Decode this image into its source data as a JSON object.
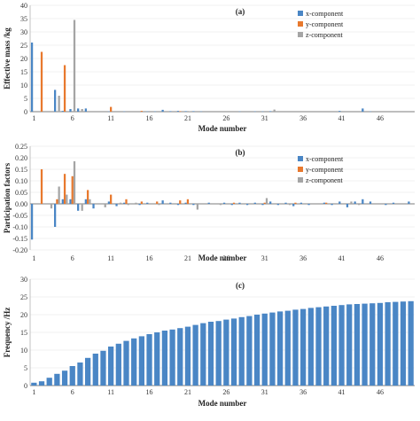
{
  "chart_data": [
    {
      "type": "bar",
      "panel_label": "(a)",
      "xlabel": "Mode number",
      "ylabel": "Effective mass /kg",
      "ylim": [
        0,
        40
      ],
      "yticks": [
        "0",
        "5",
        "10",
        "15",
        "20",
        "25",
        "30",
        "35",
        "40"
      ],
      "x": [
        1,
        2,
        3,
        4,
        5,
        6,
        7,
        8,
        9,
        10,
        11,
        12,
        13,
        14,
        15,
        16,
        17,
        18,
        19,
        20,
        21,
        22,
        23,
        24,
        25,
        26,
        27,
        28,
        29,
        30,
        31,
        32,
        33,
        34,
        35,
        36,
        37,
        38,
        39,
        40,
        41,
        42,
        43,
        44,
        45,
        46,
        47,
        48,
        49,
        50
      ],
      "xticks": [
        "1",
        "6",
        "11",
        "16",
        "21",
        "26",
        "31",
        "36",
        "41",
        "46"
      ],
      "legend_position": "top-right",
      "series": [
        {
          "name": "x-component",
          "color": "#4a86c5",
          "values": [
            26,
            0,
            0,
            8.2,
            0.3,
            1,
            1.2,
            1.2,
            0,
            0,
            0.1,
            0,
            0.1,
            0,
            0,
            0.1,
            0.1,
            0.7,
            0.2,
            0.3,
            0.2,
            0.2,
            0.1,
            0,
            0,
            0,
            0,
            0.1,
            0,
            0.1,
            0.1,
            0.2,
            0,
            0,
            0,
            0,
            0,
            0,
            0,
            0,
            0.3,
            0,
            0,
            1.2,
            0.1,
            0,
            0,
            0,
            0,
            0
          ]
        },
        {
          "name": "y-component",
          "color": "#e8792e",
          "values": [
            0,
            22.5,
            0,
            0,
            17.5,
            0,
            0,
            0,
            0,
            0,
            1.8,
            0,
            0,
            0,
            0.3,
            0,
            0,
            0,
            0,
            0.2,
            0,
            0,
            0,
            0,
            0,
            0,
            0,
            0,
            0,
            0,
            0,
            0,
            0,
            0,
            0,
            0,
            0,
            0,
            0,
            0,
            0,
            0,
            0,
            0,
            0,
            0,
            0,
            0,
            0,
            0
          ]
        },
        {
          "name": "z-component",
          "color": "#a5a5a5",
          "values": [
            0,
            0,
            0,
            6,
            0,
            34.5,
            1,
            0,
            0,
            0,
            0,
            0,
            0,
            0,
            0,
            0,
            0,
            0,
            0,
            0,
            0.2,
            0,
            0,
            0,
            0,
            0,
            0,
            0,
            0,
            0,
            0,
            0.8,
            0,
            0,
            0,
            0,
            0,
            0,
            0,
            0,
            0,
            0,
            0,
            0,
            0,
            0,
            0,
            0,
            0,
            0
          ]
        }
      ]
    },
    {
      "type": "bar",
      "panel_label": "(b)",
      "xlabel": "Mode number",
      "ylabel": "Participation factors",
      "ylim": [
        -0.2,
        0.25
      ],
      "yticks": [
        "-0.20",
        "-0.15",
        "-0.10",
        "-0.05",
        "0.00",
        "0.05",
        "0.10",
        "0.15",
        "0.20",
        "0.25"
      ],
      "x": [
        1,
        2,
        3,
        4,
        5,
        6,
        7,
        8,
        9,
        10,
        11,
        12,
        13,
        14,
        15,
        16,
        17,
        18,
        19,
        20,
        21,
        22,
        23,
        24,
        25,
        26,
        27,
        28,
        29,
        30,
        31,
        32,
        33,
        34,
        35,
        36,
        37,
        38,
        39,
        40,
        41,
        42,
        43,
        44,
        45,
        46,
        47,
        48,
        49,
        50
      ],
      "xticks": [
        "1",
        "6",
        "11",
        "16",
        "21",
        "26",
        "31",
        "36",
        "41",
        "46"
      ],
      "legend_position": "top-right",
      "series": [
        {
          "name": "x-component",
          "color": "#4a86c5",
          "values": [
            -0.155,
            0,
            0,
            -0.1,
            0.02,
            0.02,
            -0.03,
            0.02,
            -0.02,
            0,
            0.01,
            -0.01,
            0.005,
            0,
            -0.005,
            0.005,
            0,
            0.015,
            0.005,
            -0.005,
            0.005,
            -0.005,
            0,
            0.005,
            0,
            0.005,
            -0.005,
            0.005,
            -0.005,
            0.005,
            -0.005,
            0.01,
            -0.005,
            0.005,
            -0.01,
            0.005,
            -0.005,
            0,
            0.005,
            -0.005,
            0.01,
            -0.015,
            0.01,
            0.02,
            0.01,
            0,
            -0.005,
            0.005,
            0,
            0.01
          ]
        },
        {
          "name": "y-component",
          "color": "#e8792e",
          "values": [
            0,
            0.15,
            0,
            0.02,
            0.13,
            0.12,
            0,
            0.06,
            0,
            0,
            0.04,
            0,
            0.02,
            0,
            0.01,
            0,
            0.01,
            0,
            0,
            0.015,
            0.02,
            0,
            0,
            0,
            0,
            0,
            0.005,
            0,
            0,
            0,
            0.005,
            0,
            0,
            0,
            0.005,
            0,
            0,
            0,
            0.005,
            0,
            0,
            0,
            0,
            0,
            0,
            0,
            0,
            0,
            0,
            0
          ]
        },
        {
          "name": "z-component",
          "color": "#a5a5a5",
          "values": [
            0,
            0,
            -0.02,
            0.075,
            0.04,
            0.185,
            -0.03,
            0.02,
            0,
            -0.015,
            0,
            0.005,
            -0.005,
            0.005,
            0,
            0,
            -0.005,
            0,
            0,
            0,
            0,
            -0.025,
            0,
            0,
            -0.005,
            0,
            0,
            0,
            0,
            0,
            0.025,
            0,
            0,
            -0.005,
            0,
            0,
            0,
            0,
            0,
            0,
            0,
            0.01,
            -0.005,
            0,
            0,
            0,
            0,
            0,
            0,
            0
          ]
        }
      ]
    },
    {
      "type": "bar",
      "panel_label": "(c)",
      "xlabel": "Mode number",
      "ylabel": "Frequency /Hz",
      "ylim": [
        0,
        30
      ],
      "yticks": [
        "0",
        "5",
        "10",
        "15",
        "20",
        "25",
        "30"
      ],
      "x": [
        1,
        2,
        3,
        4,
        5,
        6,
        7,
        8,
        9,
        10,
        11,
        12,
        13,
        14,
        15,
        16,
        17,
        18,
        19,
        20,
        21,
        22,
        23,
        24,
        25,
        26,
        27,
        28,
        29,
        30,
        31,
        32,
        33,
        34,
        35,
        36,
        37,
        38,
        39,
        40,
        41,
        42,
        43,
        44,
        45,
        46,
        47,
        48,
        49,
        50
      ],
      "xticks": [
        "1",
        "6",
        "11",
        "16",
        "21",
        "26",
        "31",
        "36",
        "41",
        "46"
      ],
      "series": [
        {
          "name": "",
          "color": "#4a86c5",
          "values": [
            0.8,
            1.2,
            2.2,
            3.3,
            4.2,
            5.5,
            6.5,
            7.8,
            9,
            9.8,
            11,
            11.8,
            12.6,
            13.3,
            13.9,
            14.5,
            15,
            15.5,
            15.8,
            16.2,
            16.6,
            17.1,
            17.6,
            18,
            18.2,
            18.6,
            18.9,
            19.3,
            19.6,
            20,
            20.3,
            20.6,
            20.9,
            21.1,
            21.4,
            21.6,
            21.9,
            22.1,
            22.3,
            22.5,
            22.7,
            22.9,
            23,
            23.1,
            23.2,
            23.3,
            23.5,
            23.6,
            23.7,
            23.8
          ]
        }
      ]
    }
  ]
}
